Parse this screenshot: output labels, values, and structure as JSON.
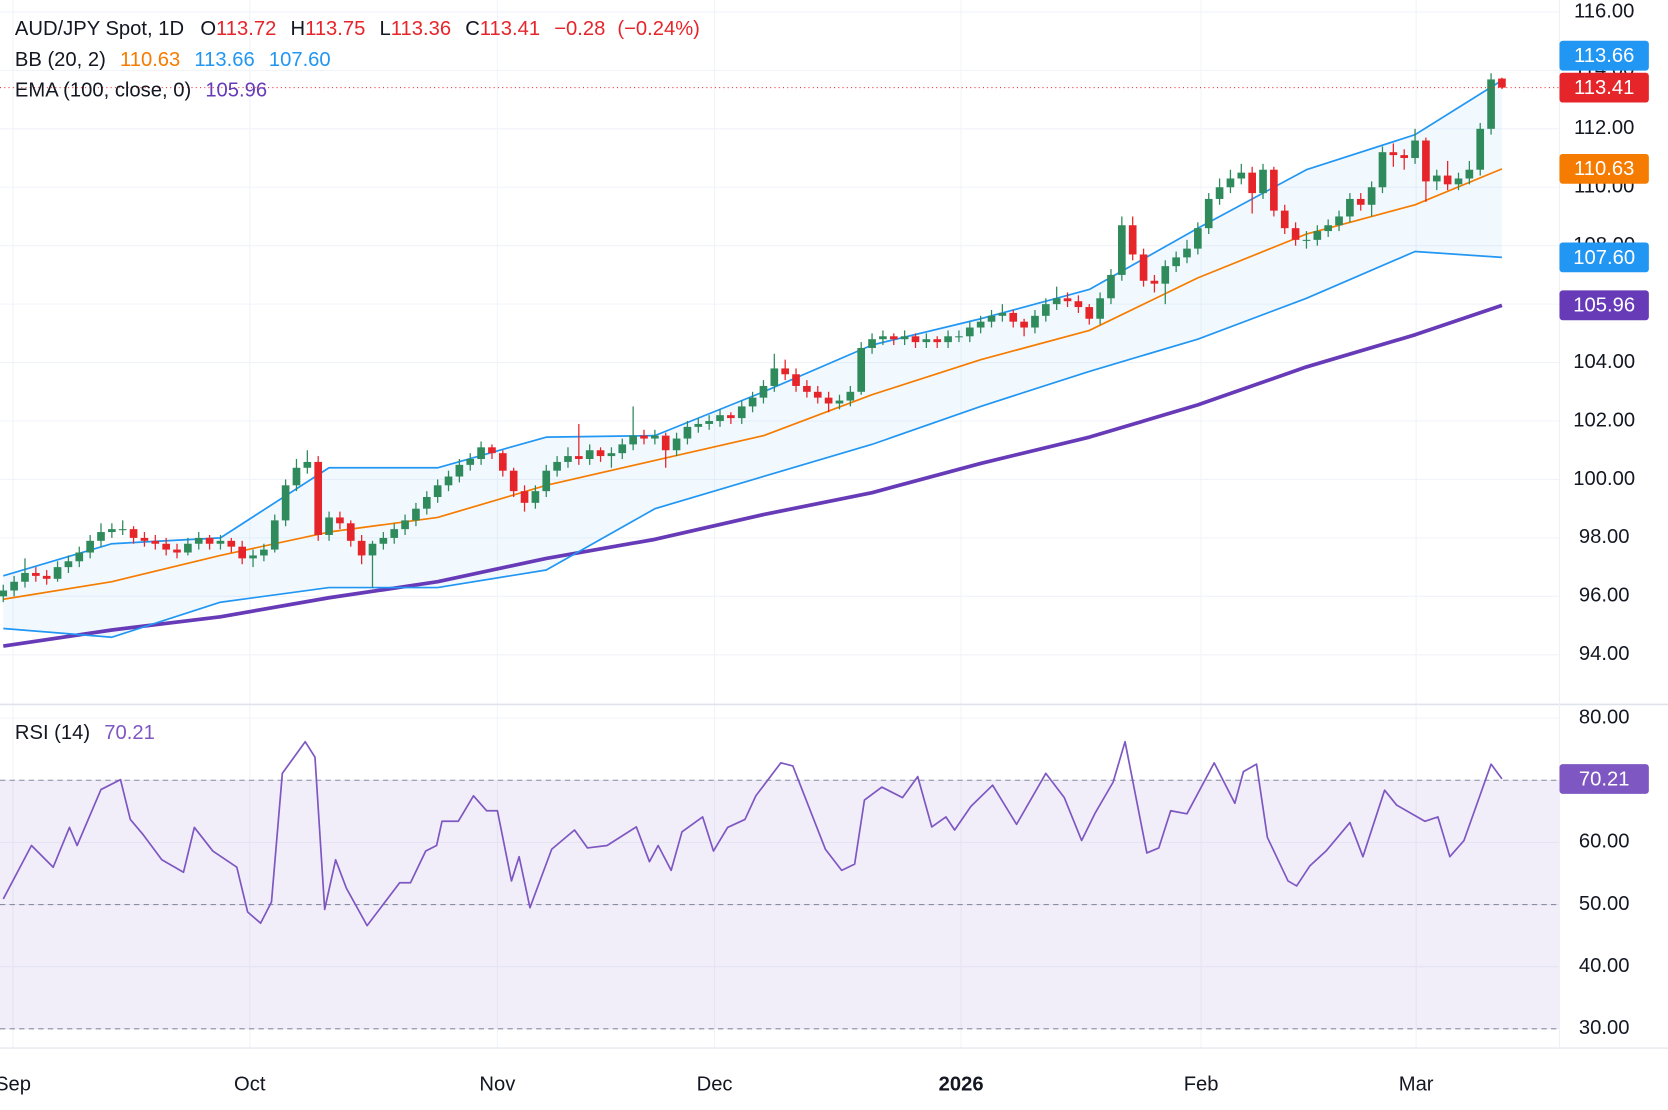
{
  "chart_data": {
    "type": "candlestick",
    "title": "AUD/JPY Spot, 1D",
    "quote_labels": [
      "O",
      "H",
      "L",
      "C"
    ],
    "change": "−0.28",
    "change_pct": "(−0.24%)",
    "up_color": "#2f8a5c",
    "down_color": "#e6252b",
    "xlim": [
      -0.3,
      143.3
    ],
    "xticks": [
      {
        "value": 0.9,
        "label": "Sep"
      },
      {
        "value": 22.7,
        "label": "Oct"
      },
      {
        "value": 45.5,
        "label": "Nov"
      },
      {
        "value": 65.5,
        "label": "Dec"
      },
      {
        "value": 88.2,
        "label": "2026"
      },
      {
        "value": 110.3,
        "label": "Feb"
      },
      {
        "value": 130.1,
        "label": "Mar"
      }
    ],
    "ylim": [
      92.3,
      116.4
    ],
    "yticks": [
      {
        "value": 94,
        "label": "94.00"
      },
      {
        "value": 96,
        "label": "96.00"
      },
      {
        "value": 98,
        "label": "98.00"
      },
      {
        "value": 100,
        "label": "100.00"
      },
      {
        "value": 102,
        "label": "102.00"
      },
      {
        "value": 104,
        "label": "104.00"
      },
      {
        "value": 106,
        "label": "106.00"
      },
      {
        "value": 108,
        "label": "108.00"
      },
      {
        "value": 110,
        "label": "110.00"
      },
      {
        "value": 112,
        "label": "112.00"
      },
      {
        "value": 114,
        "label": "114.00"
      },
      {
        "value": 116,
        "label": "116.00"
      }
    ],
    "grid": true,
    "candles": [
      [
        96.0,
        96.4,
        95.8,
        96.2
      ],
      [
        96.2,
        96.7,
        96.0,
        96.5
      ],
      [
        96.5,
        97.3,
        96.3,
        96.8
      ],
      [
        96.8,
        97.0,
        96.5,
        96.7
      ],
      [
        96.7,
        96.9,
        96.4,
        96.6
      ],
      [
        96.6,
        97.2,
        96.5,
        97.0
      ],
      [
        97.0,
        97.4,
        96.8,
        97.2
      ],
      [
        97.2,
        97.7,
        97.0,
        97.5
      ],
      [
        97.5,
        98.1,
        97.3,
        97.9
      ],
      [
        97.9,
        98.5,
        97.7,
        98.2
      ],
      [
        98.2,
        98.5,
        98.0,
        98.3
      ],
      [
        98.3,
        98.6,
        98.1,
        98.3
      ],
      [
        98.3,
        98.4,
        97.8,
        98.0
      ],
      [
        98.0,
        98.2,
        97.7,
        97.9
      ],
      [
        97.9,
        98.1,
        97.6,
        97.8
      ],
      [
        97.8,
        98.0,
        97.4,
        97.6
      ],
      [
        97.6,
        97.8,
        97.3,
        97.5
      ],
      [
        97.5,
        98.0,
        97.4,
        97.8
      ],
      [
        97.8,
        98.2,
        97.6,
        98.0
      ],
      [
        98.0,
        98.1,
        97.6,
        97.8
      ],
      [
        97.8,
        98.1,
        97.6,
        97.9
      ],
      [
        97.9,
        98.0,
        97.5,
        97.7
      ],
      [
        97.7,
        97.9,
        97.1,
        97.3
      ],
      [
        97.3,
        97.6,
        97.0,
        97.4
      ],
      [
        97.4,
        97.8,
        97.2,
        97.6
      ],
      [
        97.6,
        98.8,
        97.5,
        98.6
      ],
      [
        98.6,
        100.0,
        98.4,
        99.8
      ],
      [
        99.8,
        100.7,
        99.6,
        100.4
      ],
      [
        100.4,
        101.0,
        100.2,
        100.6
      ],
      [
        100.6,
        100.8,
        97.9,
        98.1
      ],
      [
        98.1,
        98.9,
        97.9,
        98.7
      ],
      [
        98.7,
        98.9,
        98.3,
        98.5
      ],
      [
        98.5,
        98.6,
        97.7,
        97.9
      ],
      [
        97.9,
        98.1,
        97.1,
        97.4
      ],
      [
        97.4,
        97.9,
        96.3,
        97.8
      ],
      [
        97.8,
        98.2,
        97.6,
        98.0
      ],
      [
        98.0,
        98.5,
        97.8,
        98.3
      ],
      [
        98.3,
        98.8,
        98.1,
        98.6
      ],
      [
        98.6,
        99.2,
        98.4,
        99.0
      ],
      [
        99.0,
        99.6,
        98.8,
        99.4
      ],
      [
        99.4,
        100.0,
        99.2,
        99.8
      ],
      [
        99.8,
        100.3,
        99.6,
        100.1
      ],
      [
        100.1,
        100.7,
        99.9,
        100.5
      ],
      [
        100.5,
        100.9,
        100.3,
        100.7
      ],
      [
        100.7,
        101.3,
        100.5,
        101.1
      ],
      [
        101.1,
        101.2,
        100.7,
        100.9
      ],
      [
        100.9,
        101.0,
        100.1,
        100.3
      ],
      [
        100.3,
        100.4,
        99.4,
        99.6
      ],
      [
        99.6,
        99.8,
        98.9,
        99.2
      ],
      [
        99.2,
        99.8,
        99.0,
        99.6
      ],
      [
        99.6,
        100.5,
        99.4,
        100.3
      ],
      [
        100.3,
        100.8,
        100.1,
        100.6
      ],
      [
        100.6,
        101.1,
        100.4,
        100.8
      ],
      [
        100.8,
        101.9,
        100.5,
        100.7
      ],
      [
        100.7,
        101.2,
        100.5,
        101.0
      ],
      [
        101.0,
        101.1,
        100.6,
        100.8
      ],
      [
        100.8,
        101.1,
        100.4,
        100.9
      ],
      [
        100.9,
        101.4,
        100.7,
        101.2
      ],
      [
        101.2,
        102.5,
        101.0,
        101.5
      ],
      [
        101.5,
        101.7,
        101.2,
        101.4
      ],
      [
        101.4,
        101.7,
        101.2,
        101.5
      ],
      [
        101.5,
        101.6,
        100.4,
        101.0
      ],
      [
        101.0,
        101.6,
        100.8,
        101.4
      ],
      [
        101.4,
        102.0,
        101.2,
        101.8
      ],
      [
        101.8,
        102.1,
        101.6,
        101.9
      ],
      [
        101.9,
        102.2,
        101.7,
        102.0
      ],
      [
        102.0,
        102.4,
        101.8,
        102.2
      ],
      [
        102.2,
        102.3,
        101.9,
        102.1
      ],
      [
        102.1,
        102.7,
        101.9,
        102.5
      ],
      [
        102.5,
        103.0,
        102.3,
        102.8
      ],
      [
        102.8,
        103.4,
        102.6,
        103.2
      ],
      [
        103.2,
        104.3,
        103.0,
        103.8
      ],
      [
        103.8,
        104.1,
        103.4,
        103.6
      ],
      [
        103.6,
        103.8,
        103.0,
        103.2
      ],
      [
        103.2,
        103.4,
        102.8,
        103.0
      ],
      [
        103.0,
        103.2,
        102.6,
        102.8
      ],
      [
        102.8,
        103.0,
        102.3,
        102.6
      ],
      [
        102.6,
        102.9,
        102.4,
        102.7
      ],
      [
        102.7,
        103.2,
        102.5,
        103.0
      ],
      [
        103.0,
        104.7,
        102.9,
        104.5
      ],
      [
        104.5,
        105.0,
        104.3,
        104.8
      ],
      [
        104.8,
        105.1,
        104.6,
        104.9
      ],
      [
        104.9,
        105.0,
        104.6,
        104.8
      ],
      [
        104.8,
        105.1,
        104.6,
        104.9
      ],
      [
        104.9,
        105.0,
        104.5,
        104.7
      ],
      [
        104.7,
        105.0,
        104.5,
        104.8
      ],
      [
        104.8,
        104.9,
        104.5,
        104.7
      ],
      [
        104.7,
        105.1,
        104.5,
        104.9
      ],
      [
        104.9,
        105.1,
        104.7,
        104.9
      ],
      [
        104.9,
        105.4,
        104.7,
        105.2
      ],
      [
        105.2,
        105.6,
        105.0,
        105.4
      ],
      [
        105.4,
        105.8,
        105.2,
        105.6
      ],
      [
        105.6,
        106.0,
        105.4,
        105.7
      ],
      [
        105.7,
        105.8,
        105.2,
        105.4
      ],
      [
        105.4,
        105.5,
        104.9,
        105.2
      ],
      [
        105.2,
        105.8,
        105.0,
        105.6
      ],
      [
        105.6,
        106.2,
        105.4,
        106.0
      ],
      [
        106.0,
        106.6,
        105.8,
        106.2
      ],
      [
        106.2,
        106.4,
        105.9,
        106.1
      ],
      [
        106.1,
        106.3,
        105.7,
        105.9
      ],
      [
        105.9,
        106.0,
        105.3,
        105.5
      ],
      [
        105.5,
        106.4,
        105.3,
        106.2
      ],
      [
        106.2,
        107.2,
        106.0,
        107.0
      ],
      [
        107.0,
        109.0,
        106.8,
        108.7
      ],
      [
        108.7,
        109.0,
        107.5,
        107.7
      ],
      [
        107.7,
        107.9,
        106.6,
        106.8
      ],
      [
        106.8,
        107.0,
        106.4,
        106.7
      ],
      [
        106.7,
        107.5,
        106.0,
        107.3
      ],
      [
        107.3,
        107.8,
        107.1,
        107.6
      ],
      [
        107.6,
        108.2,
        107.4,
        107.9
      ],
      [
        107.9,
        108.8,
        107.7,
        108.6
      ],
      [
        108.6,
        109.8,
        108.4,
        109.6
      ],
      [
        109.6,
        110.3,
        109.4,
        110.0
      ],
      [
        110.0,
        110.6,
        109.8,
        110.3
      ],
      [
        110.3,
        110.8,
        110.1,
        110.5
      ],
      [
        110.5,
        110.7,
        109.1,
        109.8
      ],
      [
        109.8,
        110.8,
        109.6,
        110.6
      ],
      [
        110.6,
        110.7,
        109.0,
        109.2
      ],
      [
        109.2,
        109.4,
        108.4,
        108.6
      ],
      [
        108.6,
        108.8,
        108.0,
        108.2
      ],
      [
        108.2,
        108.5,
        107.9,
        108.2
      ],
      [
        108.2,
        108.7,
        108.0,
        108.5
      ],
      [
        108.5,
        108.9,
        108.3,
        108.7
      ],
      [
        108.7,
        109.2,
        108.5,
        109.0
      ],
      [
        109.0,
        109.8,
        108.8,
        109.6
      ],
      [
        109.6,
        109.8,
        109.2,
        109.4
      ],
      [
        109.4,
        110.2,
        109.0,
        110.0
      ],
      [
        110.0,
        111.4,
        109.8,
        111.2
      ],
      [
        111.2,
        111.5,
        110.7,
        111.1
      ],
      [
        111.1,
        111.3,
        110.6,
        111.0
      ],
      [
        111.0,
        112.0,
        110.8,
        111.6
      ],
      [
        111.6,
        111.7,
        109.5,
        110.2
      ],
      [
        110.2,
        110.6,
        109.9,
        110.4
      ],
      [
        110.4,
        110.9,
        109.9,
        110.1
      ],
      [
        110.1,
        110.5,
        109.9,
        110.3
      ],
      [
        110.3,
        110.9,
        110.1,
        110.6
      ],
      [
        110.6,
        112.2,
        110.4,
        112.0
      ],
      [
        112.0,
        113.9,
        111.8,
        113.69
      ],
      [
        113.72,
        113.75,
        113.36,
        113.41
      ]
    ],
    "bollinger": {
      "name": "BB (20, 2)",
      "x": [
        0,
        10,
        20,
        30,
        40,
        50,
        60,
        70,
        80,
        90,
        100,
        110,
        120,
        130,
        138
      ],
      "fill": "rgba(33,150,243,0.06)",
      "middle": {
        "color": "#f57c00",
        "values": [
          95.9,
          96.5,
          97.4,
          98.2,
          98.7,
          99.8,
          100.65,
          101.5,
          102.9,
          104.1,
          105.1,
          106.9,
          108.4,
          109.4,
          110.63
        ]
      },
      "upper": {
        "color": "#2196f3",
        "values": [
          96.7,
          97.8,
          98.0,
          100.4,
          100.4,
          101.45,
          101.5,
          103.0,
          104.6,
          105.5,
          106.5,
          108.6,
          110.6,
          111.8,
          113.66
        ]
      },
      "lower": {
        "color": "#2196f3",
        "values": [
          94.9,
          94.6,
          95.8,
          96.3,
          96.3,
          96.9,
          99.0,
          100.1,
          101.2,
          102.5,
          103.7,
          104.8,
          106.2,
          107.8,
          107.6
        ],
        "value_labels": [
          null,
          null,
          null,
          null,
          null,
          null,
          null,
          null,
          null,
          null,
          null,
          null,
          null,
          null,
          "107.60"
        ]
      }
    },
    "ema": {
      "name": "EMA (100, close, 0)",
      "color": "#673ab7",
      "x": [
        0,
        10,
        20,
        30,
        40,
        50,
        60,
        70,
        80,
        90,
        100,
        110,
        120,
        130,
        138
      ],
      "values": [
        94.3,
        94.85,
        95.3,
        95.95,
        96.5,
        97.3,
        97.95,
        98.8,
        99.55,
        100.55,
        101.45,
        102.55,
        103.85,
        104.95,
        105.96
      ]
    },
    "rsi": {
      "name": "RSI (14)",
      "color": "#7e57c2",
      "ylim": [
        26.9,
        82.2
      ],
      "yticks": [
        {
          "value": 30,
          "label": "30.00"
        },
        {
          "value": 40,
          "label": "40.00"
        },
        {
          "value": 50,
          "label": "50.00"
        },
        {
          "value": 60,
          "label": "60.00"
        },
        {
          "value": 70,
          "label": "70.00"
        },
        {
          "value": 80,
          "label": "80.00"
        }
      ],
      "levels": [
        30,
        50,
        70
      ],
      "x": [
        0,
        2.6,
        4.6,
        6.1,
        6.8,
        9.0,
        10.8,
        11.7,
        12.9,
        14.6,
        16.6,
        17.6,
        19.3,
        21.5,
        22.5,
        23.7,
        24.7,
        25.7,
        27.8,
        28.7,
        29.6,
        30.6,
        31.6,
        33.5,
        36.5,
        37.5,
        38.9,
        39.9,
        40.4,
        41.9,
        43.3,
        44.5,
        45.5,
        46.8,
        47.5,
        48.5,
        50.5,
        52.6,
        53.8,
        55.6,
        58.3,
        59.5,
        60.3,
        61.5,
        62.5,
        64.4,
        65.4,
        66.7,
        68.3,
        69.3,
        71.6,
        72.7,
        75.7,
        77.2,
        78.4,
        79.3,
        80.9,
        82.8,
        84.2,
        85.5,
        86.8,
        87.6,
        89.1,
        91.1,
        93.3,
        96.0,
        97.7,
        99.3,
        100.5,
        102.2,
        103.3,
        105.3,
        106.4,
        107.5,
        109.0,
        111.5,
        113.4,
        114.2,
        115.4,
        116.4,
        118.3,
        119.1,
        120.3,
        121.8,
        124.0,
        125.2,
        127.2,
        128.3,
        130.9,
        132.1,
        133.2,
        134.5,
        137.0,
        138
      ],
      "values": [
        50.9,
        59.5,
        56,
        62.4,
        59.5,
        68.5,
        70.1,
        63.7,
        61.2,
        57.2,
        55.2,
        62.4,
        58.6,
        56,
        48.8,
        47,
        50.4,
        71.1,
        76.2,
        73.7,
        49.2,
        57.2,
        52.6,
        46.6,
        53.5,
        53.5,
        58.6,
        59.5,
        63.4,
        63.4,
        67.5,
        65.1,
        65.1,
        53.8,
        57.7,
        49.5,
        58.9,
        62,
        59.1,
        59.5,
        62.5,
        56.9,
        59.5,
        55.5,
        61.7,
        64.1,
        58.6,
        62.4,
        63.7,
        67.5,
        72.8,
        72.3,
        58.9,
        55.5,
        56.5,
        66.8,
        68.9,
        67.2,
        70.6,
        62.5,
        64.1,
        62,
        65.8,
        69.2,
        62.9,
        71.1,
        67.2,
        60.3,
        64.6,
        69.7,
        76.2,
        58.3,
        59.1,
        65.1,
        64.6,
        72.8,
        66.3,
        71.4,
        72.6,
        60.8,
        53.8,
        53,
        56.2,
        58.6,
        63.2,
        57.7,
        68.4,
        66,
        63.4,
        64.1,
        57.7,
        60.3,
        72.6,
        70.21
      ]
    }
  }
}
